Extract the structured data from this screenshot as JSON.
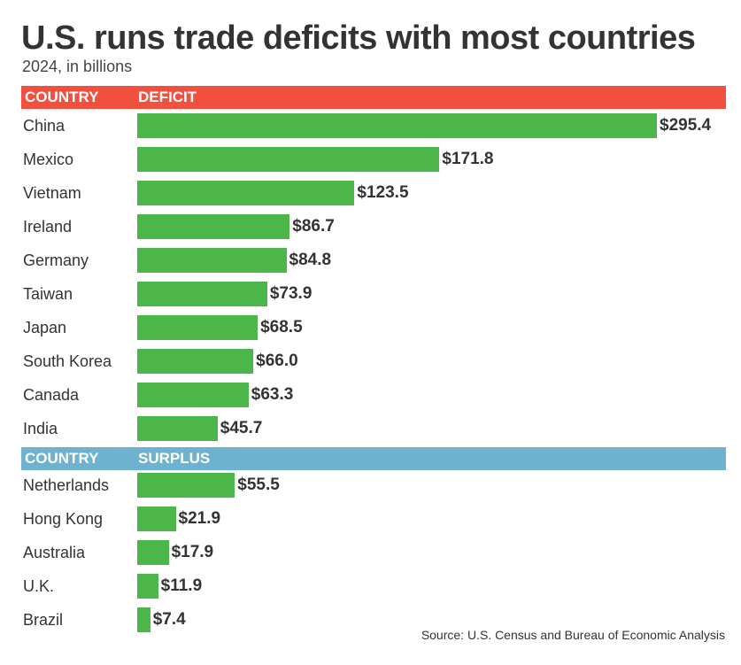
{
  "colors": {
    "bar": "#4cb648",
    "deficit_header": "#f1503f",
    "surplus_header": "#6db3cf"
  },
  "chart_data": {
    "type": "bar",
    "orientation": "horizontal",
    "title": "U.S. runs trade deficits with most countries",
    "subtitle": "2024, in billions",
    "source": "Source: U.S. Census and Bureau of Economic Analysis",
    "sections": [
      {
        "name": "deficit",
        "header": {
          "country": "COUNTRY",
          "value": "DEFICIT"
        },
        "categories": [
          "China",
          "Mexico",
          "Vietnam",
          "Ireland",
          "Germany",
          "Taiwan",
          "Japan",
          "South Korea",
          "Canada",
          "India"
        ],
        "values": [
          295.4,
          171.8,
          123.5,
          86.7,
          84.8,
          73.9,
          68.5,
          66.0,
          63.3,
          45.7
        ],
        "labels": [
          "$295.4",
          "$171.8",
          "$123.5",
          "$86.7",
          "$84.8",
          "$73.9",
          "$68.5",
          "$66.0",
          "$63.3",
          "$45.7"
        ]
      },
      {
        "name": "surplus",
        "header": {
          "country": "COUNTRY",
          "value": "SURPLUS"
        },
        "categories": [
          "Netherlands",
          "Hong Kong",
          "Australia",
          "U.K.",
          "Brazil"
        ],
        "values": [
          55.5,
          21.9,
          17.9,
          11.9,
          7.4
        ],
        "labels": [
          "$55.5",
          "$21.9",
          "$17.9",
          "$11.9",
          "$7.4"
        ]
      }
    ],
    "xlim": [
      0,
      295.4
    ],
    "grid": false,
    "legend": "none"
  }
}
